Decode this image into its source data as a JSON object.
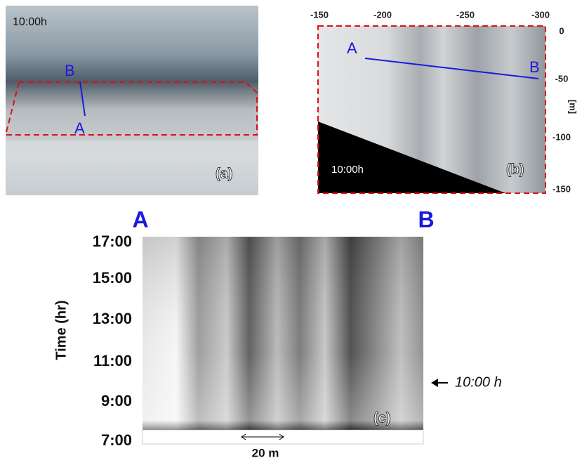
{
  "panel_a": {
    "time": "10:00h",
    "label": "(a)",
    "point_a": "A",
    "point_b": "B"
  },
  "panel_b": {
    "time": "10:00h",
    "label": "(b)",
    "point_a": "A",
    "point_b": "B",
    "x_ticks": [
      "-150",
      "-200",
      "-250",
      "-300"
    ],
    "y_ticks": [
      "0",
      "-50",
      "-100",
      "-150"
    ],
    "y_unit": "[m]"
  },
  "panel_c": {
    "label": "(c)",
    "start": "A",
    "end": "B",
    "y_axis_title": "Time (hr)",
    "y_ticks": [
      "17:00",
      "15:00",
      "13:00",
      "11:00",
      "9:00",
      "7:00"
    ],
    "marker": "10:00 h",
    "scale": "20 m"
  }
}
